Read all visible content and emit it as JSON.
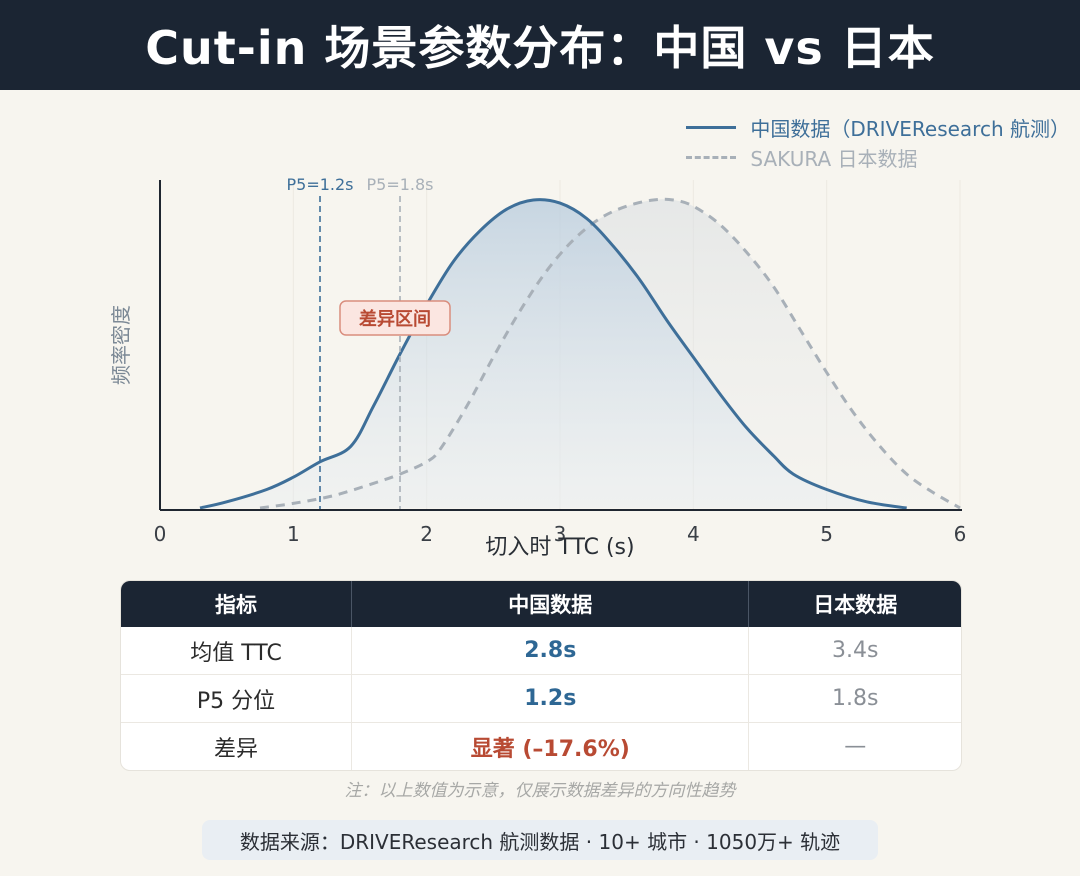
{
  "header": {
    "title": "Cut-in 场景参数分布：中国 vs 日本"
  },
  "legend": {
    "china": "中国数据（DRIVEResearch 航测）",
    "japan": "SAKURA 日本数据"
  },
  "chart_data": {
    "type": "line",
    "xlabel": "切入时 TTC (s)",
    "ylabel": "频率密度",
    "xlim": [
      0,
      6
    ],
    "xticks": [
      "0",
      "1",
      "2",
      "3",
      "4",
      "5",
      "6"
    ],
    "series": [
      {
        "name": "中国数据（DRIVEResearch 航测）",
        "style": "solid",
        "color": "#3e6f99",
        "x": [
          0.3,
          0.5,
          0.8,
          1.0,
          1.2,
          1.43,
          1.6,
          1.8,
          2.0,
          2.2,
          2.4,
          2.6,
          2.8,
          3.0,
          3.2,
          3.4,
          3.6,
          3.8,
          4.0,
          4.2,
          4.4,
          4.6,
          4.75,
          5.0,
          5.3,
          5.6
        ],
        "y": [
          0.0,
          0.02,
          0.06,
          0.1,
          0.15,
          0.2,
          0.33,
          0.5,
          0.66,
          0.8,
          0.9,
          0.97,
          1.0,
          0.99,
          0.94,
          0.85,
          0.74,
          0.61,
          0.49,
          0.37,
          0.26,
          0.17,
          0.11,
          0.06,
          0.02,
          0.0
        ]
      },
      {
        "name": "SAKURA 日本数据",
        "style": "dashed",
        "color": "#a8b0b8",
        "x": [
          0.75,
          1.0,
          1.3,
          1.6,
          1.8,
          2.0,
          2.1,
          2.3,
          2.5,
          2.7,
          2.9,
          3.1,
          3.3,
          3.5,
          3.7,
          3.85,
          4.0,
          4.2,
          4.4,
          4.6,
          4.8,
          5.0,
          5.2,
          5.4,
          5.6,
          5.8,
          6.0
        ],
        "y": [
          0.0,
          0.015,
          0.04,
          0.08,
          0.11,
          0.15,
          0.19,
          0.33,
          0.49,
          0.64,
          0.77,
          0.87,
          0.94,
          0.98,
          1.0,
          1.0,
          0.98,
          0.92,
          0.83,
          0.72,
          0.58,
          0.44,
          0.31,
          0.2,
          0.11,
          0.05,
          0.0
        ]
      }
    ],
    "reference_lines": [
      {
        "label": "P5=1.2s",
        "x": 1.2,
        "color": "#3e6f99"
      },
      {
        "label": "P5=1.8s",
        "x": 1.8,
        "color": "#a8b0b8"
      }
    ],
    "annotation": {
      "text": "差异区间",
      "color": "#b84a33"
    }
  },
  "table": {
    "headers": [
      "指标",
      "中国数据",
      "日本数据"
    ],
    "rows": [
      {
        "metric": "均值 TTC",
        "china": "2.8s",
        "japan": "3.4s"
      },
      {
        "metric": "P5 分位",
        "china": "1.2s",
        "japan": "1.8s"
      },
      {
        "metric": "差异",
        "china": "显著 (–17.6%)",
        "japan": "—"
      }
    ]
  },
  "note": "注：以上数值为示意，仅展示数据差异的方向性趋势",
  "source": "数据来源：DRIVEResearch 航测数据 · 10+ 城市 · 1050万+ 轨迹"
}
